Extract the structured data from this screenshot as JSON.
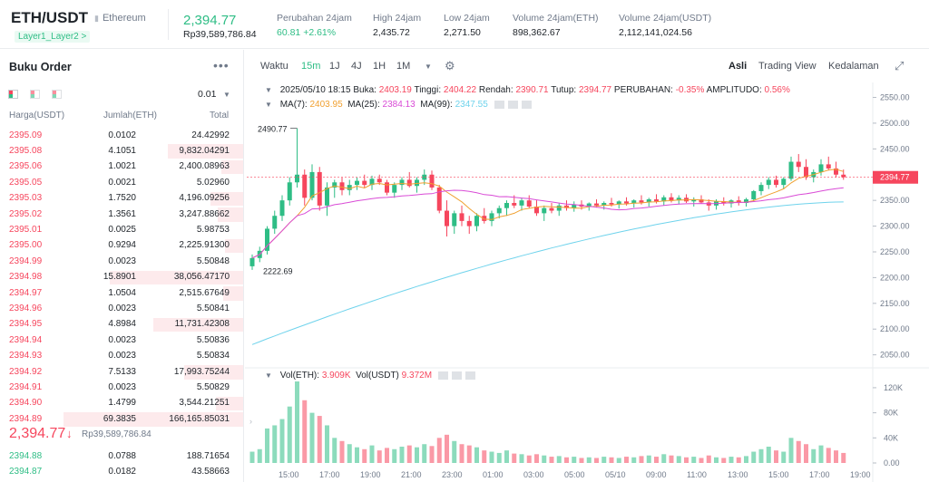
{
  "header": {
    "pair": "ETH/USDT",
    "name": "Ethereum",
    "tags": "Layer1_Layer2 >",
    "last_price": "2,394.77",
    "last_price_rp": "Rp39,589,786.84",
    "stats": [
      {
        "label": "Perubahan 24jam",
        "value": "60.81 +2.61%",
        "up": true
      },
      {
        "label": "High 24jam",
        "value": "2,435.72",
        "up": false
      },
      {
        "label": "Low 24jam",
        "value": "2,271.50",
        "up": false
      },
      {
        "label": "Volume 24jam(ETH)",
        "value": "898,362.67",
        "up": false
      },
      {
        "label": "Volume 24jam(USDT)",
        "value": "2,112,141,024.56",
        "up": false
      }
    ]
  },
  "orderbook": {
    "title": "Buku Order",
    "more": "•••",
    "step": "0.01",
    "cols": {
      "price": "Harga(USDT)",
      "amount": "Jumlah(ETH)",
      "total": "Total"
    },
    "asks": [
      {
        "p": "2395.09",
        "a": "0.0102",
        "t": "24.42992",
        "d": 0
      },
      {
        "p": "2395.08",
        "a": "4.1051",
        "t": "9,832.04291",
        "d": 0.42
      },
      {
        "p": "2395.06",
        "a": "1.0021",
        "t": "2,400.08963",
        "d": 0.12
      },
      {
        "p": "2395.05",
        "a": "0.0021",
        "t": "5.02960",
        "d": 0
      },
      {
        "p": "2395.03",
        "a": "1.7520",
        "t": "4,196.09256",
        "d": 0.18
      },
      {
        "p": "2395.02",
        "a": "1.3561",
        "t": "3,247.88662",
        "d": 0.14
      },
      {
        "p": "2395.01",
        "a": "0.0025",
        "t": "5.98753",
        "d": 0
      },
      {
        "p": "2395.00",
        "a": "0.9294",
        "t": "2,225.91300",
        "d": 0.1
      },
      {
        "p": "2394.99",
        "a": "0.0023",
        "t": "5.50848",
        "d": 0
      },
      {
        "p": "2394.98",
        "a": "15.8901",
        "t": "38,056.47170",
        "d": 0.74
      },
      {
        "p": "2394.97",
        "a": "1.0504",
        "t": "2,515.67649",
        "d": 0.11
      },
      {
        "p": "2394.96",
        "a": "0.0023",
        "t": "5.50841",
        "d": 0
      },
      {
        "p": "2394.95",
        "a": "4.8984",
        "t": "11,731.42308",
        "d": 0.5
      },
      {
        "p": "2394.94",
        "a": "0.0023",
        "t": "5.50836",
        "d": 0
      },
      {
        "p": "2394.93",
        "a": "0.0023",
        "t": "5.50834",
        "d": 0
      },
      {
        "p": "2394.92",
        "a": "7.5133",
        "t": "17,993.75244",
        "d": 0.33
      },
      {
        "p": "2394.91",
        "a": "0.0023",
        "t": "5.50829",
        "d": 0
      },
      {
        "p": "2394.90",
        "a": "1.4799",
        "t": "3,544.21251",
        "d": 0.15
      },
      {
        "p": "2394.89",
        "a": "69.3835",
        "t": "166,165.85031",
        "d": 1.0
      }
    ],
    "mid_price": "2,394.77",
    "mid_arrow": "↓",
    "mid_rp": "Rp39,589,786.84",
    "bids": [
      {
        "p": "2394.88",
        "a": "0.0788",
        "t": "188.71654",
        "d": 0
      },
      {
        "p": "2394.87",
        "a": "0.0182",
        "t": "43.58663",
        "d": 0
      }
    ]
  },
  "toolbar": {
    "items": [
      "Waktu",
      "15m",
      "1J",
      "4J",
      "1H",
      "1M"
    ],
    "active": "15m",
    "views": [
      "Asli",
      "Trading View",
      "Kedalaman"
    ],
    "active_view": "Asli"
  },
  "legend": {
    "ohlc": "2025/05/10 18:15",
    "buka_l": "Buka:",
    "buka": "2403.19",
    "tinggi_l": "Tinggi:",
    "tinggi": "2404.22",
    "rendah_l": "Rendah:",
    "rendah": "2390.71",
    "tutup_l": "Tutup:",
    "tutup": "2394.77",
    "perubahan_l": "PERUBAHAN:",
    "perubahan": "-0.35%",
    "amp_l": "AMPLITUDO:",
    "amp": "0.56%",
    "ma7_l": "MA(7):",
    "ma7": "2403.95",
    "ma25_l": "MA(25):",
    "ma25": "2384.13",
    "ma99_l": "MA(99):",
    "ma99": "2347.55",
    "vol_eth_l": "Vol(ETH):",
    "vol_eth": "3.909K",
    "vol_usdt_l": "Vol(USDT)",
    "vol_usdt": "9.372M"
  },
  "colors": {
    "up": "#2ebd85",
    "down": "#f6465d",
    "ma7": "#f0a030",
    "ma25": "#d94bd6",
    "ma99": "#6fd3ec"
  },
  "chart_data": {
    "type": "candlestick",
    "price_axis": [
      "2550.00",
      "2500.00",
      "2450.00",
      "2400.00",
      "2350.00",
      "2300.00",
      "2250.00",
      "2200.00",
      "2150.00",
      "2100.00",
      "2050.00"
    ],
    "price_range": [
      2030,
      2565
    ],
    "last_price_tag": "2394.77",
    "high_annot": "2490.77",
    "low_annot": "2222.69",
    "time_axis": [
      "15:00",
      "17:00",
      "19:00",
      "21:00",
      "23:00",
      "01:00",
      "03:00",
      "05:00",
      "05/10",
      "09:00",
      "11:00",
      "13:00",
      "15:00",
      "17:00",
      "19:00"
    ],
    "vol_axis": [
      "120K",
      "80K",
      "40K",
      "0.00"
    ],
    "vol_max": 130,
    "candles": [
      [
        2222,
        2245,
        2215,
        2238,
        18
      ],
      [
        2238,
        2260,
        2230,
        2252,
        22
      ],
      [
        2252,
        2300,
        2245,
        2295,
        55
      ],
      [
        2295,
        2330,
        2285,
        2320,
        60
      ],
      [
        2320,
        2360,
        2310,
        2350,
        70
      ],
      [
        2350,
        2395,
        2340,
        2385,
        90
      ],
      [
        2385,
        2490,
        2375,
        2400,
        130
      ],
      [
        2400,
        2410,
        2340,
        2355,
        100
      ],
      [
        2355,
        2420,
        2350,
        2405,
        80
      ],
      [
        2405,
        2415,
        2330,
        2340,
        75
      ],
      [
        2340,
        2385,
        2320,
        2375,
        60
      ],
      [
        2375,
        2390,
        2355,
        2385,
        40
      ],
      [
        2385,
        2395,
        2360,
        2370,
        35
      ],
      [
        2370,
        2390,
        2360,
        2380,
        30
      ],
      [
        2380,
        2395,
        2370,
        2388,
        25
      ],
      [
        2388,
        2400,
        2375,
        2380,
        22
      ],
      [
        2380,
        2398,
        2370,
        2392,
        28
      ],
      [
        2392,
        2400,
        2380,
        2385,
        20
      ],
      [
        2385,
        2390,
        2360,
        2365,
        24
      ],
      [
        2365,
        2385,
        2355,
        2380,
        22
      ],
      [
        2380,
        2395,
        2370,
        2390,
        26
      ],
      [
        2390,
        2405,
        2375,
        2378,
        28
      ],
      [
        2378,
        2395,
        2365,
        2390,
        25
      ],
      [
        2390,
        2410,
        2380,
        2400,
        30
      ],
      [
        2400,
        2408,
        2370,
        2375,
        27
      ],
      [
        2375,
        2380,
        2325,
        2330,
        40
      ],
      [
        2330,
        2350,
        2280,
        2300,
        45
      ],
      [
        2300,
        2330,
        2285,
        2325,
        35
      ],
      [
        2325,
        2340,
        2300,
        2310,
        30
      ],
      [
        2310,
        2320,
        2285,
        2300,
        28
      ],
      [
        2300,
        2325,
        2290,
        2320,
        25
      ],
      [
        2320,
        2335,
        2305,
        2310,
        20
      ],
      [
        2310,
        2330,
        2300,
        2325,
        18
      ],
      [
        2325,
        2340,
        2315,
        2335,
        16
      ],
      [
        2335,
        2350,
        2320,
        2345,
        20
      ],
      [
        2345,
        2360,
        2335,
        2340,
        15
      ],
      [
        2340,
        2355,
        2330,
        2350,
        14
      ],
      [
        2350,
        2360,
        2335,
        2338,
        12
      ],
      [
        2338,
        2350,
        2320,
        2325,
        14
      ],
      [
        2325,
        2340,
        2310,
        2335,
        12
      ],
      [
        2335,
        2345,
        2325,
        2330,
        10
      ],
      [
        2330,
        2345,
        2320,
        2340,
        11
      ],
      [
        2340,
        2350,
        2330,
        2335,
        9
      ],
      [
        2335,
        2348,
        2328,
        2342,
        10
      ],
      [
        2342,
        2350,
        2332,
        2338,
        8
      ],
      [
        2338,
        2346,
        2330,
        2344,
        9
      ],
      [
        2344,
        2352,
        2336,
        2340,
        8
      ],
      [
        2340,
        2348,
        2332,
        2345,
        10
      ],
      [
        2345,
        2355,
        2338,
        2342,
        9
      ],
      [
        2342,
        2350,
        2334,
        2348,
        8
      ],
      [
        2348,
        2356,
        2340,
        2344,
        10
      ],
      [
        2344,
        2352,
        2336,
        2350,
        9
      ],
      [
        2350,
        2360,
        2342,
        2346,
        11
      ],
      [
        2346,
        2355,
        2338,
        2352,
        12
      ],
      [
        2352,
        2362,
        2344,
        2348,
        10
      ],
      [
        2348,
        2360,
        2340,
        2356,
        14
      ],
      [
        2356,
        2364,
        2346,
        2350,
        12
      ],
      [
        2350,
        2360,
        2342,
        2355,
        11
      ],
      [
        2355,
        2362,
        2345,
        2348,
        9
      ],
      [
        2348,
        2356,
        2338,
        2352,
        10
      ],
      [
        2352,
        2360,
        2344,
        2346,
        8
      ],
      [
        2346,
        2352,
        2330,
        2340,
        12
      ],
      [
        2340,
        2352,
        2332,
        2348,
        9
      ],
      [
        2348,
        2356,
        2340,
        2344,
        8
      ],
      [
        2344,
        2352,
        2336,
        2350,
        10
      ],
      [
        2350,
        2358,
        2340,
        2345,
        9
      ],
      [
        2345,
        2355,
        2338,
        2352,
        11
      ],
      [
        2352,
        2370,
        2348,
        2368,
        18
      ],
      [
        2368,
        2385,
        2360,
        2380,
        22
      ],
      [
        2380,
        2395,
        2372,
        2390,
        26
      ],
      [
        2390,
        2398,
        2375,
        2380,
        20
      ],
      [
        2380,
        2395,
        2372,
        2392,
        18
      ],
      [
        2392,
        2435,
        2388,
        2425,
        40
      ],
      [
        2425,
        2440,
        2405,
        2415,
        35
      ],
      [
        2415,
        2430,
        2390,
        2395,
        30
      ],
      [
        2395,
        2410,
        2385,
        2405,
        22
      ],
      [
        2405,
        2430,
        2398,
        2420,
        28
      ],
      [
        2420,
        2435,
        2408,
        2412,
        24
      ],
      [
        2412,
        2425,
        2395,
        2400,
        20
      ],
      [
        2400,
        2410,
        2390,
        2395,
        16
      ]
    ]
  }
}
